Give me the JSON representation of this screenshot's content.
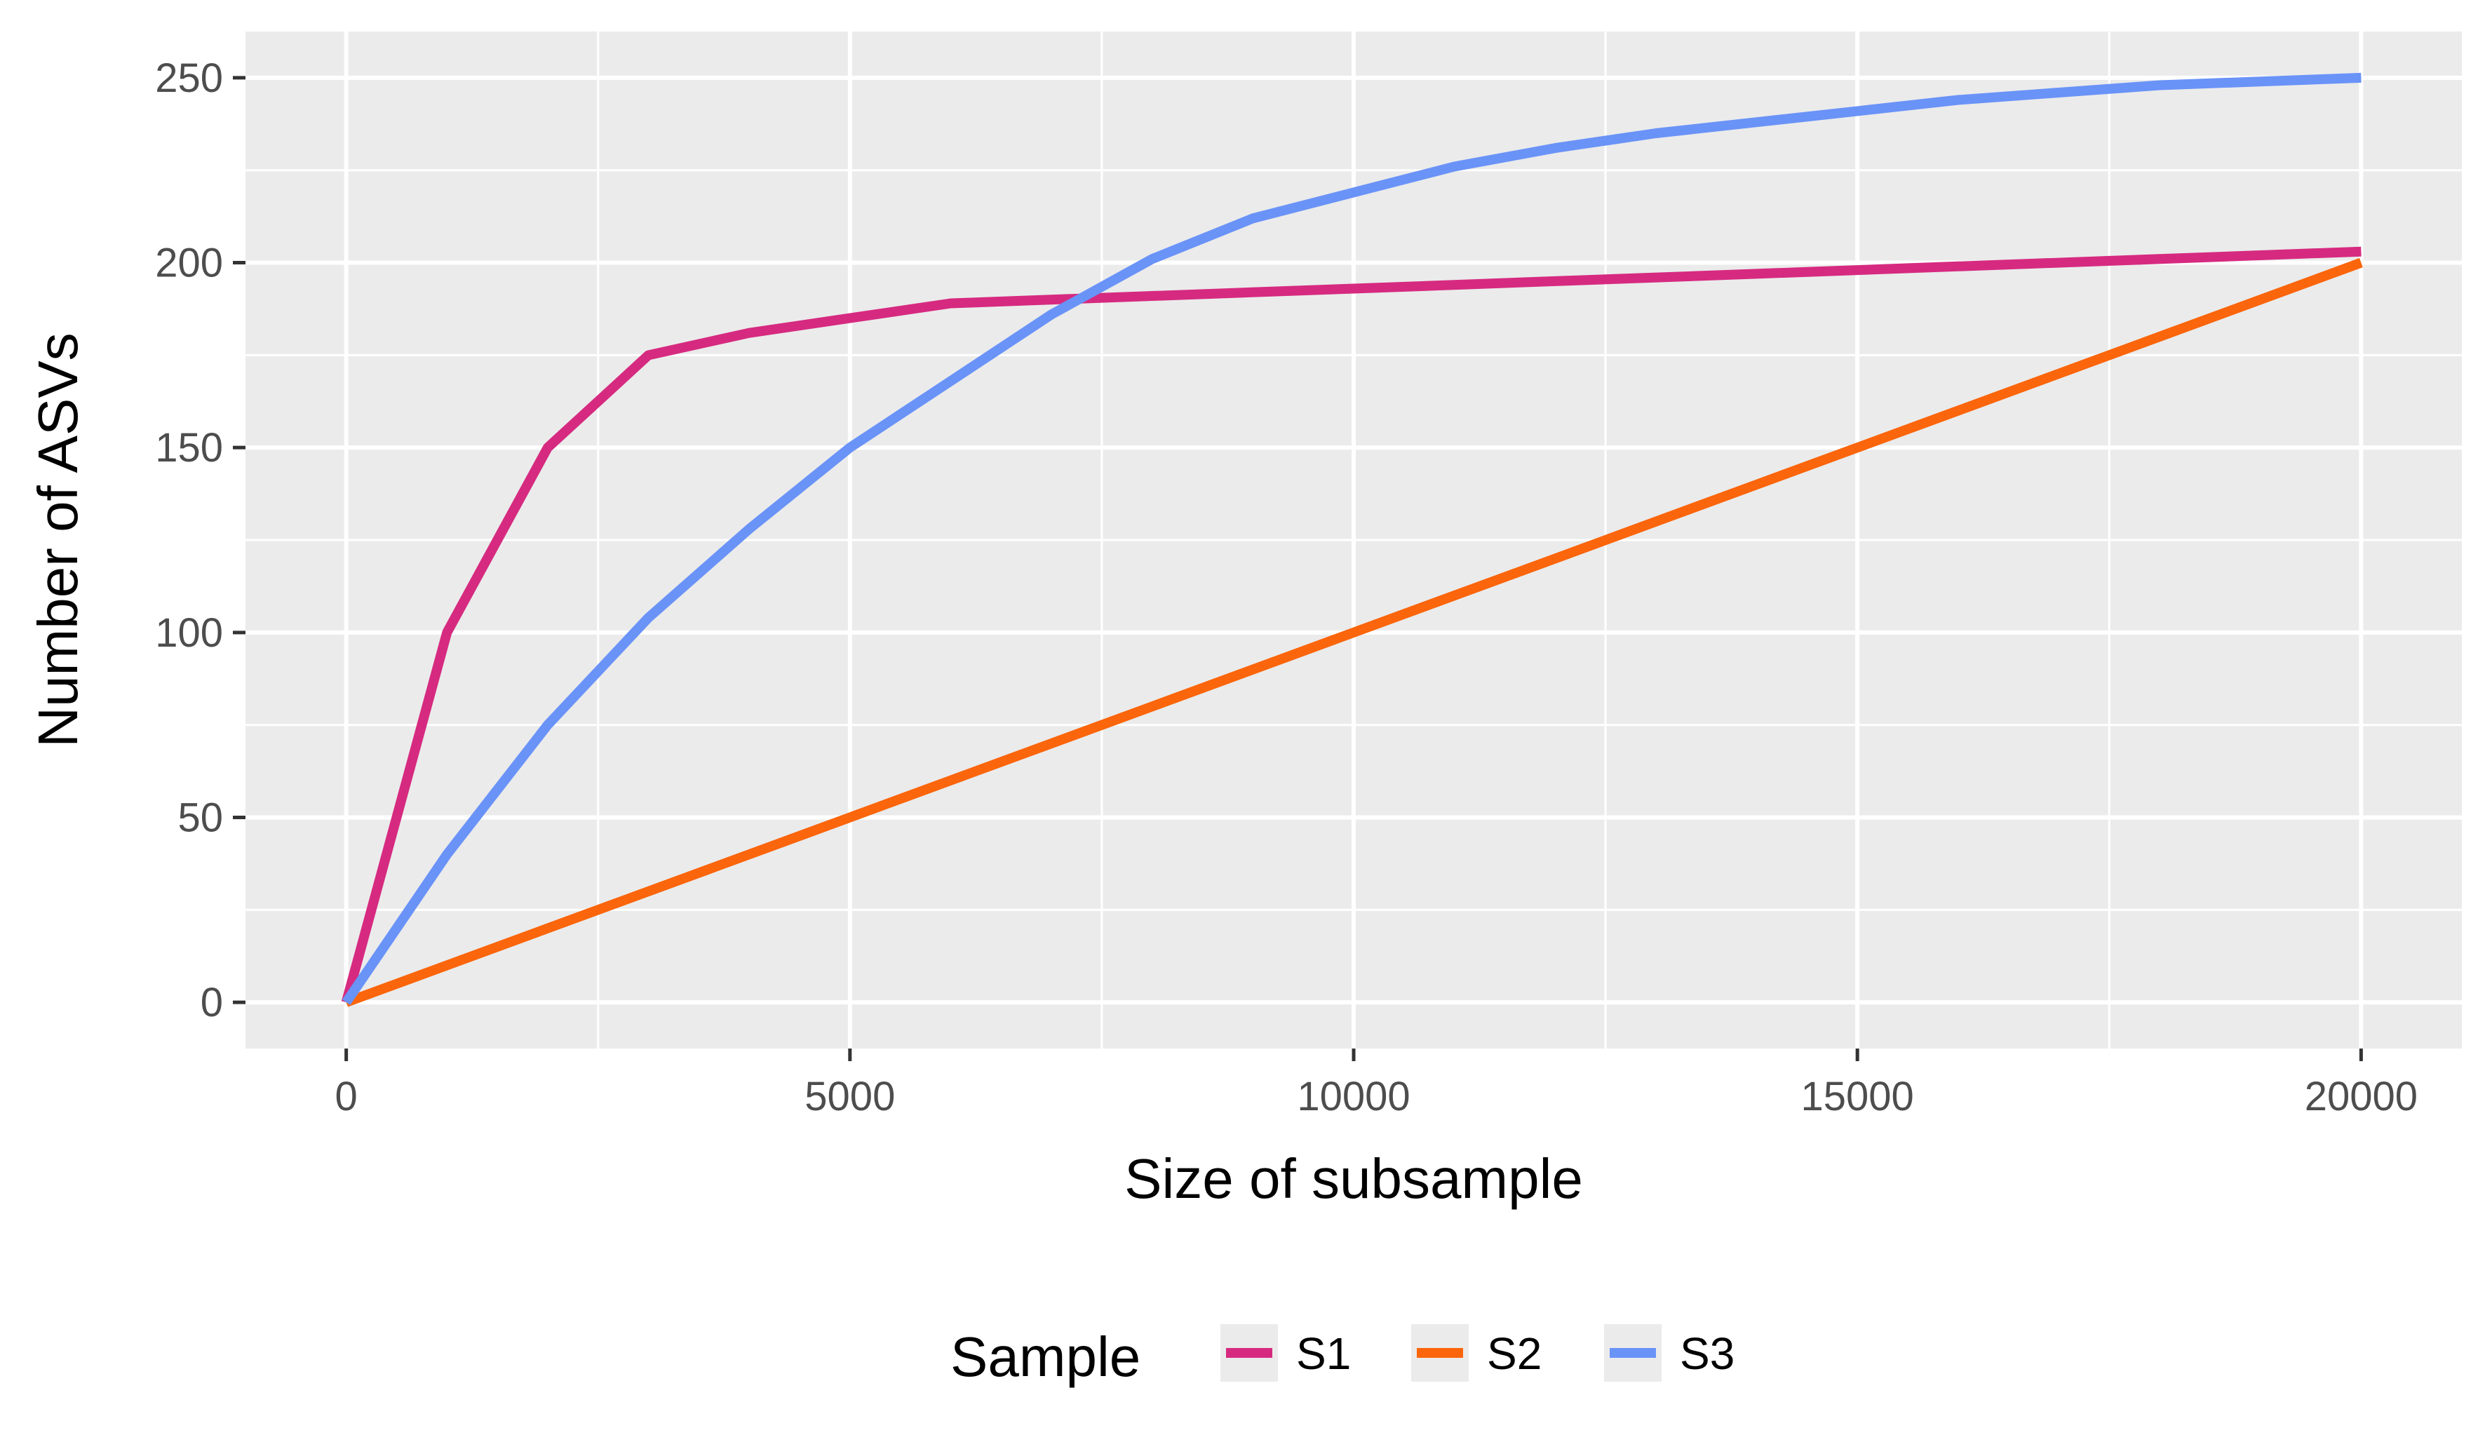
{
  "chart_data": {
    "type": "line",
    "title": "",
    "xlabel": "Size of subsample",
    "ylabel": "Number of ASVs",
    "xlim": [
      -1000,
      21000
    ],
    "ylim": [
      -12.5,
      262.5
    ],
    "x_ticks": [
      0,
      5000,
      10000,
      15000,
      20000
    ],
    "y_ticks": [
      0,
      50,
      100,
      150,
      200,
      250
    ],
    "grid": true,
    "legend": {
      "title": "Sample",
      "position": "bottom"
    },
    "series": [
      {
        "name": "S1",
        "color": "#d62a80",
        "points": [
          [
            0,
            0
          ],
          [
            1000,
            100
          ],
          [
            2000,
            150
          ],
          [
            3000,
            175
          ],
          [
            4000,
            181
          ],
          [
            5000,
            185
          ],
          [
            6000,
            189
          ],
          [
            8000,
            191
          ],
          [
            10000,
            193
          ],
          [
            12000,
            195
          ],
          [
            14000,
            197
          ],
          [
            16000,
            199
          ],
          [
            18000,
            201
          ],
          [
            20000,
            203
          ]
        ]
      },
      {
        "name": "S2",
        "color": "#fb650b",
        "points": [
          [
            0,
            0
          ],
          [
            2000,
            20
          ],
          [
            4000,
            40
          ],
          [
            6000,
            60
          ],
          [
            8000,
            80
          ],
          [
            10000,
            100
          ],
          [
            12000,
            120
          ],
          [
            14000,
            140
          ],
          [
            16000,
            160
          ],
          [
            18000,
            180
          ],
          [
            20000,
            200
          ]
        ]
      },
      {
        "name": "S3",
        "color": "#6a93f8",
        "points": [
          [
            0,
            0
          ],
          [
            1000,
            40
          ],
          [
            2000,
            75
          ],
          [
            3000,
            104
          ],
          [
            4000,
            128
          ],
          [
            5000,
            150
          ],
          [
            6000,
            168
          ],
          [
            7000,
            186
          ],
          [
            8000,
            201
          ],
          [
            9000,
            212
          ],
          [
            10000,
            219
          ],
          [
            11000,
            226
          ],
          [
            12000,
            231
          ],
          [
            13000,
            235
          ],
          [
            14000,
            238
          ],
          [
            15000,
            241
          ],
          [
            16000,
            244
          ],
          [
            17000,
            246
          ],
          [
            18000,
            248
          ],
          [
            20000,
            250
          ]
        ]
      }
    ]
  }
}
